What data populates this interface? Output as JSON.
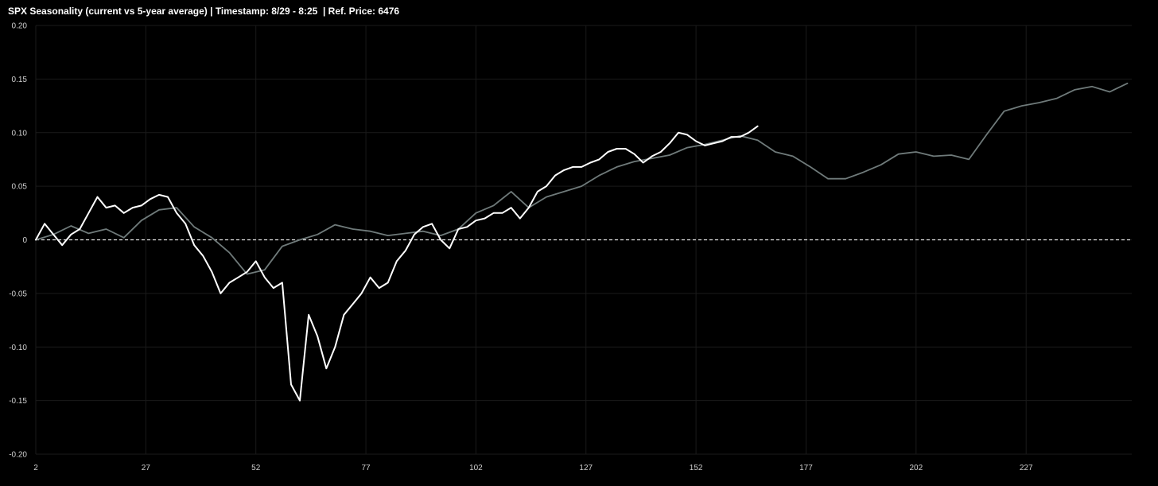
{
  "title": "SPX Seasonality (current vs 5-year average) | Timestamp: 8/29 - 8:25  | Ref. Price: 6476",
  "chart_data": {
    "type": "line",
    "title": "SPX Seasonality (current vs 5-year average) | Timestamp: 8/29 - 8:25  | Ref. Price: 6476",
    "xlabel": "",
    "ylabel": "",
    "xlim": [
      2,
      251
    ],
    "ylim": [
      -0.2,
      0.2
    ],
    "x_ticks": [
      2,
      27,
      52,
      77,
      102,
      127,
      152,
      177,
      202,
      227
    ],
    "x_tick_labels": [
      "2",
      "27",
      "52",
      "77",
      "102",
      "127",
      "152",
      "177",
      "202",
      "227"
    ],
    "y_ticks": [
      -0.2,
      -0.15,
      -0.1,
      -0.05,
      0,
      0.05,
      0.1,
      0.15,
      0.2
    ],
    "y_tick_labels": [
      "-0.20",
      "-0.15",
      "-0.10",
      "-0.05",
      "0",
      "0.05",
      "0.10",
      "0.15",
      "0.20"
    ],
    "grid": true,
    "legend": "none",
    "reference_line": {
      "y": 0,
      "style": "dashed",
      "color": "#e6e6e6"
    },
    "series": [
      {
        "color": "#6f7a7a",
        "x": [
          2,
          6,
          10,
          14,
          18,
          22,
          26,
          30,
          34,
          38,
          42,
          46,
          50,
          54,
          58,
          62,
          66,
          70,
          74,
          78,
          82,
          86,
          90,
          94,
          98,
          102,
          106,
          110,
          114,
          118,
          122,
          126,
          130,
          134,
          138,
          142,
          146,
          150,
          154,
          158,
          162,
          166,
          170,
          174,
          178,
          182,
          186,
          190,
          194,
          198,
          202,
          206,
          210,
          214,
          218,
          222,
          226,
          230,
          234,
          238,
          242,
          246,
          250
        ],
        "values": [
          0.0,
          0.005,
          0.013,
          0.006,
          0.01,
          0.002,
          0.018,
          0.028,
          0.03,
          0.012,
          0.002,
          -0.012,
          -0.032,
          -0.028,
          -0.006,
          0.0,
          0.005,
          0.014,
          0.01,
          0.008,
          0.004,
          0.006,
          0.008,
          0.004,
          0.01,
          0.025,
          0.032,
          0.045,
          0.03,
          0.04,
          0.045,
          0.05,
          0.06,
          0.068,
          0.073,
          0.076,
          0.079,
          0.086,
          0.089,
          0.093,
          0.097,
          0.093,
          0.082,
          0.078,
          0.068,
          0.057,
          0.057,
          0.063,
          0.07,
          0.08,
          0.082,
          0.078,
          0.079,
          0.075,
          0.098,
          0.12,
          0.125,
          0.128,
          0.132,
          0.14,
          0.143,
          0.138,
          0.146
        ]
      },
      {
        "color": "#ffffff",
        "x": [
          2,
          4,
          6,
          8,
          10,
          12,
          14,
          16,
          18,
          20,
          22,
          24,
          26,
          28,
          30,
          32,
          34,
          36,
          38,
          40,
          42,
          44,
          46,
          48,
          50,
          52,
          54,
          56,
          58,
          60,
          62,
          64,
          66,
          68,
          70,
          72,
          74,
          76,
          78,
          80,
          82,
          84,
          86,
          88,
          90,
          92,
          94,
          96,
          98,
          100,
          102,
          104,
          106,
          108,
          110,
          112,
          114,
          116,
          118,
          120,
          122,
          124,
          126,
          128,
          130,
          132,
          134,
          136,
          138,
          140,
          142,
          144,
          146,
          148,
          150,
          152,
          154,
          156,
          158,
          160,
          162,
          164,
          166
        ],
        "values": [
          0.0,
          0.015,
          0.005,
          -0.005,
          0.005,
          0.01,
          0.025,
          0.04,
          0.03,
          0.032,
          0.025,
          0.03,
          0.032,
          0.038,
          0.042,
          0.04,
          0.025,
          0.015,
          -0.005,
          -0.015,
          -0.03,
          -0.05,
          -0.04,
          -0.035,
          -0.03,
          -0.02,
          -0.035,
          -0.045,
          -0.04,
          -0.135,
          -0.15,
          -0.07,
          -0.09,
          -0.12,
          -0.1,
          -0.07,
          -0.06,
          -0.05,
          -0.035,
          -0.045,
          -0.04,
          -0.02,
          -0.01,
          0.005,
          0.012,
          0.015,
          0.0,
          -0.008,
          0.01,
          0.012,
          0.018,
          0.02,
          0.025,
          0.025,
          0.03,
          0.02,
          0.03,
          0.045,
          0.05,
          0.06,
          0.065,
          0.068,
          0.068,
          0.072,
          0.075,
          0.082,
          0.085,
          0.085,
          0.08,
          0.072,
          0.078,
          0.082,
          0.09,
          0.1,
          0.098,
          0.092,
          0.088,
          0.09,
          0.092,
          0.096,
          0.096,
          0.1,
          0.106
        ]
      }
    ]
  }
}
